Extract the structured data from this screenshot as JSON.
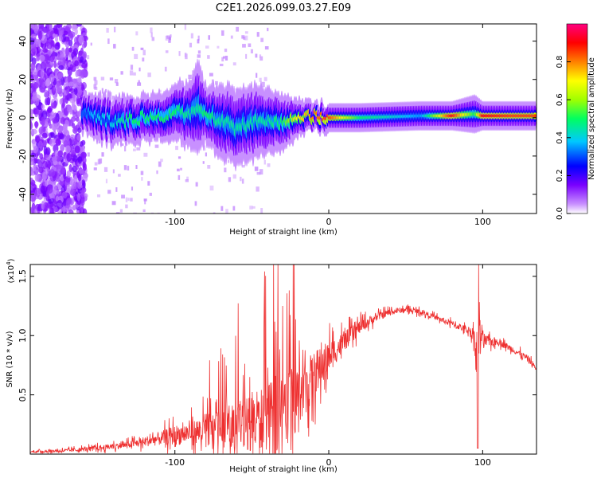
{
  "chart_data": [
    {
      "type": "heatmap",
      "title": "C2E1.2026.099.03.27.E09",
      "xlabel": "Height of straight line (km)",
      "ylabel": "Frequency (Hz)",
      "xlim": [
        -194,
        135
      ],
      "ylim": [
        -50,
        49
      ],
      "x_ticks": [
        "-100",
        "0",
        "100"
      ],
      "x_tick_values": [
        -100,
        0,
        100
      ],
      "y_ticks": [
        "-40",
        "-20",
        "0",
        "20",
        "40"
      ],
      "y_tick_values": [
        -40,
        -20,
        0,
        20,
        40
      ],
      "colorbar": {
        "label": "Normalized spectral amplitude",
        "ticks": [
          "0.0",
          "0.2",
          "0.4",
          "0.6",
          "0.8"
        ],
        "tick_values": [
          0.0,
          0.2,
          0.4,
          0.6,
          0.8
        ],
        "range": [
          0,
          1
        ],
        "colors": [
          "#ffffff",
          "#c890ff",
          "#7a00ff",
          "#0000ff",
          "#00c8ff",
          "#00ff60",
          "#a0ff00",
          "#ffff00",
          "#ff8000",
          "#ff0000",
          "#ff0080"
        ]
      },
      "ridge": {
        "x": [
          -160,
          -150,
          -140,
          -130,
          -120,
          -110,
          -100,
          -90,
          -85,
          -80,
          -70,
          -60,
          -50,
          -40,
          -30,
          -20,
          -10,
          0,
          20,
          60,
          80,
          95,
          100,
          120,
          135
        ],
        "center_freq": [
          2,
          0,
          -2,
          -1,
          0,
          1,
          2,
          3,
          5,
          2,
          -2,
          -5,
          -3,
          -1,
          -2,
          0,
          1,
          0,
          0,
          1,
          1,
          2,
          1,
          1,
          1
        ],
        "amplitude": [
          0.3,
          0.4,
          0.4,
          0.5,
          0.5,
          0.5,
          0.5,
          0.45,
          0.45,
          0.5,
          0.45,
          0.45,
          0.45,
          0.45,
          0.5,
          0.7,
          0.8,
          0.85,
          0.5,
          0.35,
          0.9,
          0.5,
          0.9,
          0.85,
          0.85
        ],
        "spread": [
          4,
          5,
          5,
          5,
          5,
          5,
          6,
          7,
          10,
          6,
          8,
          8,
          8,
          7,
          6,
          4,
          3,
          3,
          3,
          3,
          3,
          4,
          3,
          3,
          3
        ]
      }
    },
    {
      "type": "line",
      "title": "",
      "xlabel": "Height of straight line (km)",
      "ylabel": "SNR (10 * v/v)",
      "y_scale_label": "(x10",
      "y_scale_exp": "4",
      "y_scale_close": ")",
      "xlim": [
        -194,
        135
      ],
      "ylim": [
        0,
        1.6
      ],
      "x_ticks": [
        "-100",
        "0",
        "100"
      ],
      "x_tick_values": [
        -100,
        0,
        100
      ],
      "y_ticks": [
        "0.5",
        "1.0",
        "1.5"
      ],
      "y_tick_values": [
        0.5,
        1.0,
        1.5
      ],
      "color": "#ee3030",
      "series": [
        {
          "name": "SNR",
          "x": [
            -194,
            -170,
            -150,
            -130,
            -110,
            -100,
            -90,
            -80,
            -70,
            -60,
            -50,
            -40,
            -30,
            -20,
            -10,
            0,
            10,
            20,
            30,
            40,
            50,
            60,
            70,
            80,
            90,
            95,
            97,
            98,
            100,
            110,
            120,
            130,
            135
          ],
          "base": [
            0.02,
            0.03,
            0.05,
            0.08,
            0.13,
            0.16,
            0.18,
            0.2,
            0.23,
            0.25,
            0.27,
            0.3,
            0.35,
            0.5,
            0.65,
            0.82,
            0.95,
            1.07,
            1.15,
            1.2,
            1.22,
            1.2,
            1.15,
            1.1,
            1.05,
            1.0,
            0.5,
            1.1,
            0.95,
            0.95,
            0.88,
            0.8,
            0.72
          ],
          "noise": [
            0.01,
            0.02,
            0.03,
            0.04,
            0.08,
            0.12,
            0.13,
            0.2,
            0.18,
            0.3,
            0.35,
            0.4,
            0.5,
            0.35,
            0.3,
            0.2,
            0.12,
            0.08,
            0.05,
            0.04,
            0.03,
            0.03,
            0.03,
            0.04,
            0.04,
            0.1,
            0.6,
            0.4,
            0.08,
            0.04,
            0.04,
            0.04,
            0.03
          ]
        }
      ]
    }
  ]
}
